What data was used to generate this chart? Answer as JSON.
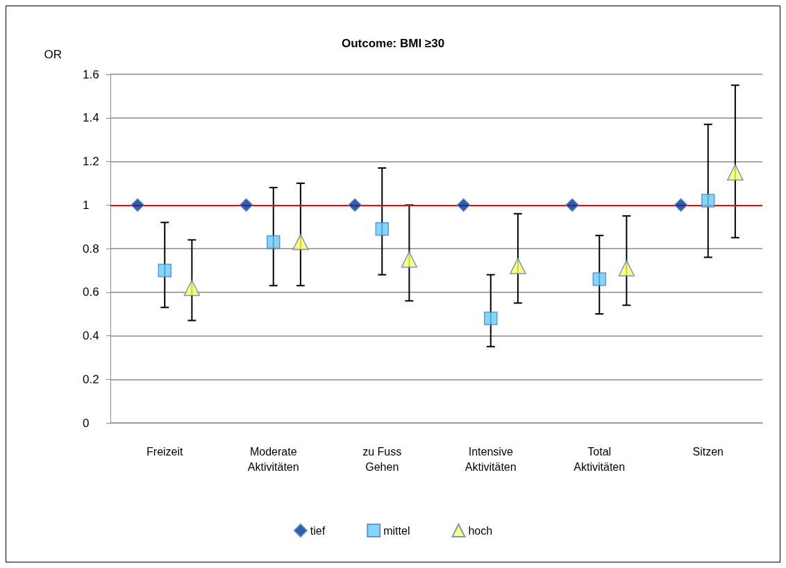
{
  "chart_data": {
    "type": "scatter",
    "title": "Outcome: BMI ≥30",
    "ylabel": "OR",
    "categories": [
      "Freizeit",
      "Moderate\nAktivitäten",
      "zu Fuss\nGehen",
      "Intensive\nAktivitäten",
      "Total\nAktivitäten",
      "Sitzen"
    ],
    "series": [
      {
        "name": "tief",
        "color": "#003399",
        "marker": "diamond",
        "values": [
          1,
          1,
          1,
          1,
          1,
          1
        ]
      },
      {
        "name": "mittel",
        "color": "#66ccff",
        "marker": "square",
        "values": [
          0.7,
          0.83,
          0.89,
          0.48,
          0.66,
          1.02
        ],
        "errors": [
          [
            0.53,
            0.92
          ],
          [
            0.63,
            1.08
          ],
          [
            0.68,
            1.17
          ],
          [
            0.35,
            0.68
          ],
          [
            0.5,
            0.86
          ],
          [
            0.76,
            1.37
          ]
        ]
      },
      {
        "name": "hoch",
        "color": "#ffff66",
        "marker": "triangle",
        "values": [
          0.62,
          0.83,
          0.75,
          0.72,
          0.71,
          1.15
        ],
        "errors": [
          [
            0.47,
            0.84
          ],
          [
            0.63,
            1.1
          ],
          [
            0.56,
            1.0
          ],
          [
            0.55,
            0.96
          ],
          [
            0.54,
            0.95
          ],
          [
            0.85,
            1.55
          ]
        ]
      }
    ],
    "ylim": [
      0,
      1.6
    ],
    "yticks": [
      0,
      0.2,
      0.4,
      0.6,
      0.8,
      1,
      1.2,
      1.4,
      1.6
    ],
    "grid": "y",
    "legend": "bottom",
    "ref_lines": [
      {
        "axis": "y",
        "value": 1,
        "color": "#ff0000"
      }
    ]
  }
}
